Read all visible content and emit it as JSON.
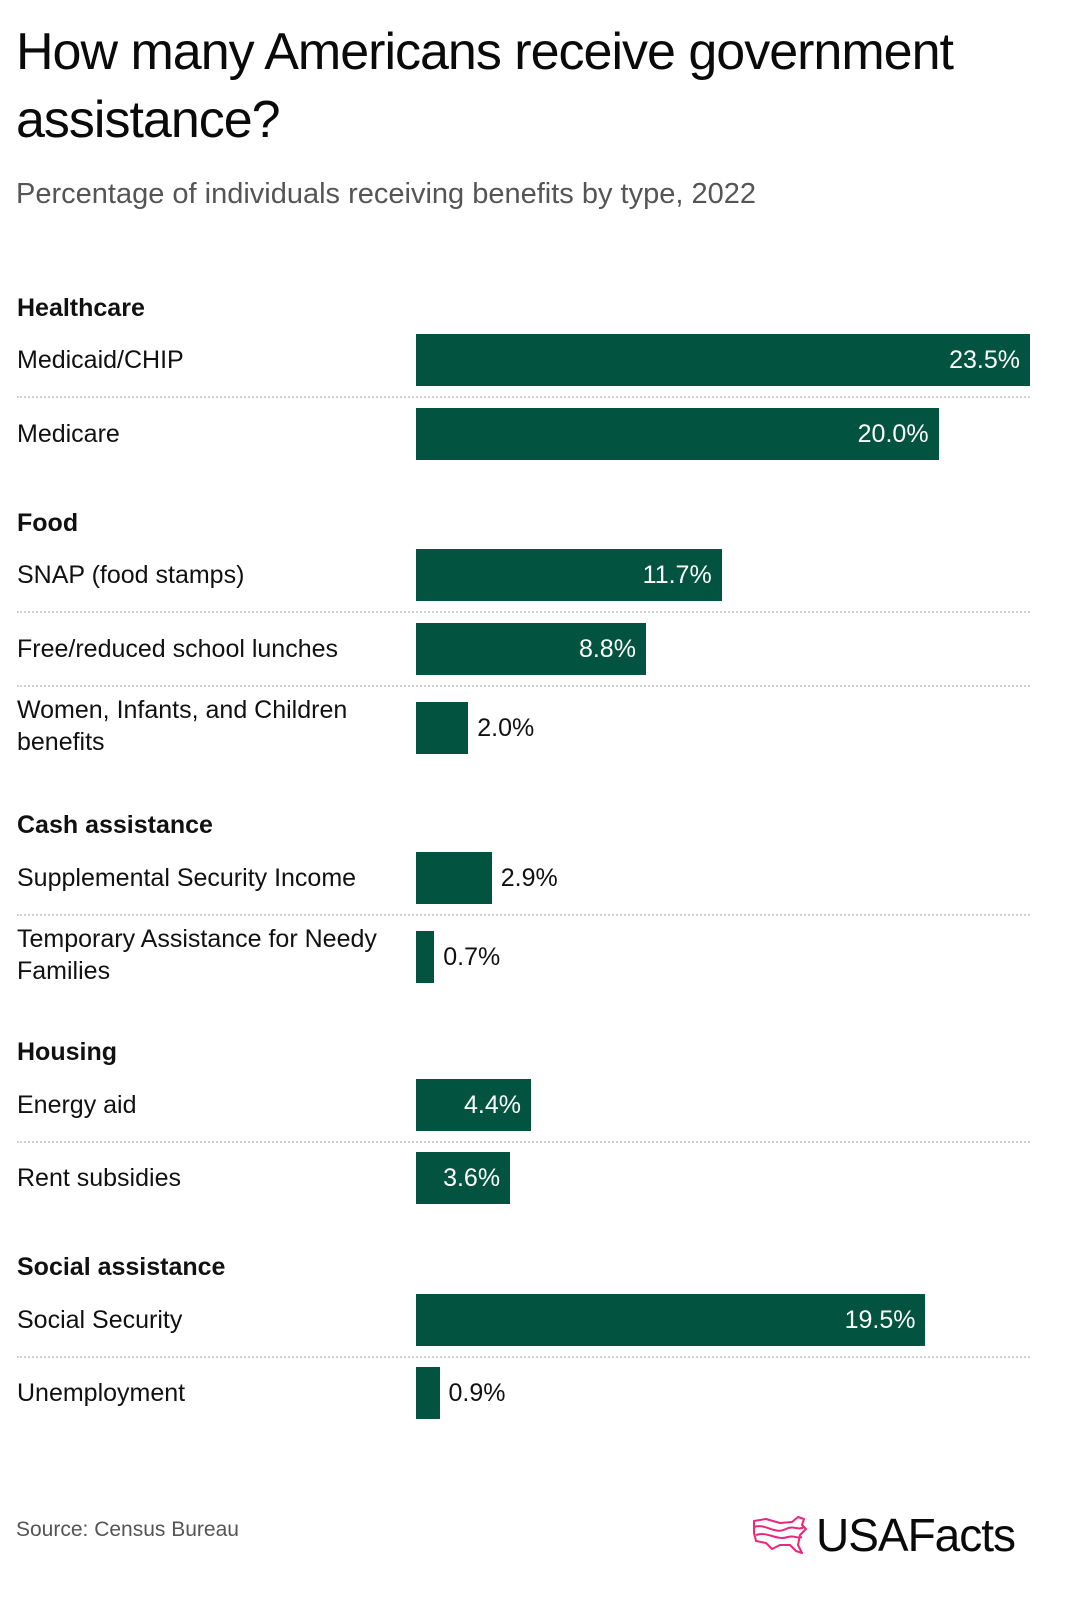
{
  "header": {
    "title": "How many Americans receive government assistance?",
    "subtitle": "Percentage of individuals receiving benefits by type, 2022"
  },
  "colors": {
    "bar": "#02533f",
    "logo_accent": "#e8287f"
  },
  "chart_data": {
    "type": "bar",
    "orientation": "horizontal",
    "title": "How many Americans receive government assistance?",
    "subtitle": "Percentage of individuals receiving benefits by type, 2022",
    "xlabel": "",
    "ylabel": "",
    "xlim": [
      0,
      23.5
    ],
    "unit": "%",
    "grid": false,
    "groups": [
      {
        "name": "Healthcare",
        "items": [
          {
            "label": "Medicaid/CHIP",
            "value": 23.5,
            "display": "23.5%"
          },
          {
            "label": "Medicare",
            "value": 20.0,
            "display": "20.0%"
          }
        ]
      },
      {
        "name": "Food",
        "items": [
          {
            "label": "SNAP (food stamps)",
            "value": 11.7,
            "display": "11.7%"
          },
          {
            "label": "Free/reduced school lunches",
            "value": 8.8,
            "display": "8.8%"
          },
          {
            "label": "Women, Infants, and Children benefits",
            "value": 2.0,
            "display": "2.0%"
          }
        ]
      },
      {
        "name": "Cash assistance",
        "items": [
          {
            "label": "Supplemental Security Income",
            "value": 2.9,
            "display": "2.9%"
          },
          {
            "label": "Temporary Assistance for Needy Families",
            "value": 0.7,
            "display": "0.7%"
          }
        ]
      },
      {
        "name": "Housing",
        "items": [
          {
            "label": "Energy aid",
            "value": 4.4,
            "display": "4.4%"
          },
          {
            "label": "Rent subsidies",
            "value": 3.6,
            "display": "3.6%"
          }
        ]
      },
      {
        "name": "Social assistance",
        "items": [
          {
            "label": "Social Security",
            "value": 19.5,
            "display": "19.5%"
          },
          {
            "label": "Unemployment",
            "value": 0.9,
            "display": "0.9%"
          }
        ]
      }
    ]
  },
  "footer": {
    "source": "Source: Census Bureau",
    "logo_text": "USAFacts",
    "logo_icon": "usa-map-icon"
  }
}
